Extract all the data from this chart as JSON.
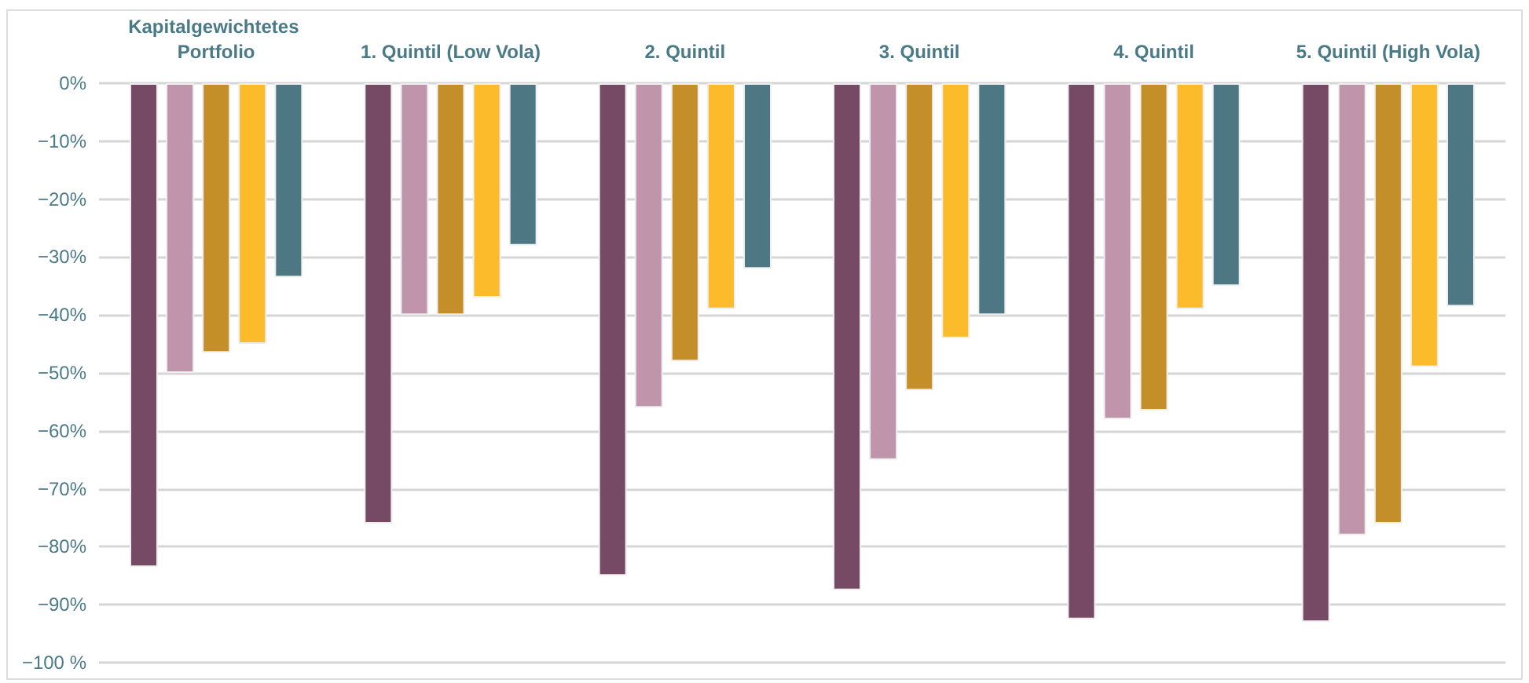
{
  "chart_data": {
    "type": "bar",
    "categories": [
      "Kapitalgewichtetes Portfolio",
      "1. Quintil (Low Vola)",
      "2. Quintil",
      "3. Quintil",
      "4. Quintil",
      "5. Quintil (High Vola)"
    ],
    "series": [
      {
        "color": "#764a64",
        "values": [
          -83.5,
          -76,
          -85,
          -87.5,
          -92.5,
          -93
        ]
      },
      {
        "color": "#c094ab",
        "values": [
          -50,
          -40,
          -56,
          -65,
          -58,
          -78
        ]
      },
      {
        "color": "#c48f29",
        "values": [
          -46.5,
          -40,
          -48,
          -53,
          -56.5,
          -76
        ]
      },
      {
        "color": "#fbbb2a",
        "values": [
          -45,
          -37,
          -39,
          -44,
          -39,
          -49
        ]
      },
      {
        "color": "#4e7784",
        "values": [
          -33.5,
          -28,
          -32,
          -40,
          -35,
          -38.5
        ]
      }
    ],
    "ylim": [
      -100,
      0
    ],
    "yticks": [
      {
        "value": 0,
        "label": "0%"
      },
      {
        "value": -10,
        "label": "−10%"
      },
      {
        "value": -20,
        "label": "−20%"
      },
      {
        "value": -30,
        "label": "−30%"
      },
      {
        "value": -40,
        "label": "−40%"
      },
      {
        "value": -50,
        "label": "−50%"
      },
      {
        "value": -60,
        "label": "−60%"
      },
      {
        "value": -70,
        "label": "−70%"
      },
      {
        "value": -80,
        "label": "−80%"
      },
      {
        "value": -90,
        "label": "−90%"
      },
      {
        "value": -100,
        "label": "−100 %"
      }
    ],
    "grid": "y"
  }
}
